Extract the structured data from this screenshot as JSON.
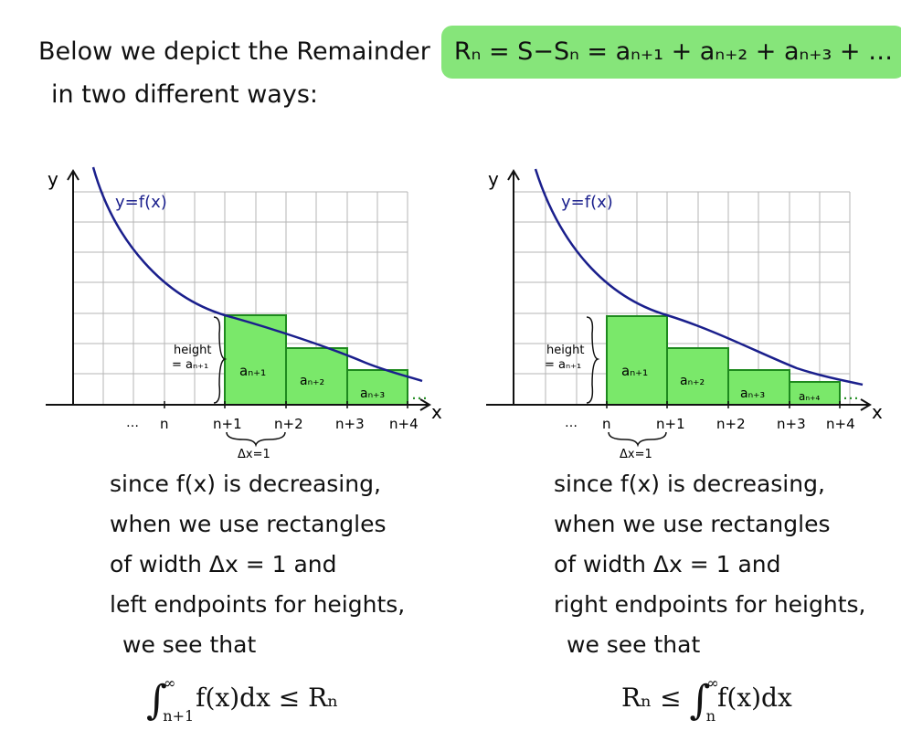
{
  "intro": {
    "prefix": "Below we depict the Remainder",
    "formula": "Rₙ = S−Sₙ = aₙ₊₁ + aₙ₊₂ + aₙ₊₃ + …",
    "line2": "in two different ways:"
  },
  "colors": {
    "curve": "#1a1f8c",
    "rect_fill": "#7ae86a",
    "rect_stroke": "#1e8a1e",
    "highlight": "#86e57a",
    "grid": "#b5b5b5"
  },
  "panels": [
    {
      "curve_label": "y=f(x)",
      "y_axis_label": "y",
      "x_axis_label": "x",
      "x_ticks": [
        "…",
        "n",
        "n+1",
        "n+2",
        "n+3",
        "n+4"
      ],
      "rect_labels": [
        "aₙ₊₁",
        "aₙ₊₂",
        "aₙ₊₃"
      ],
      "ellipsis": "…",
      "height_label_1": "height",
      "height_label_2": "= aₙ₊₁",
      "width_label": "Δx=1",
      "caption": [
        "since f(x) is decreasing,",
        "when we use rectangles",
        "of width Δx = 1  and",
        "left endpoints for heights,",
        "we see that"
      ],
      "formula": {
        "upper": "∞",
        "lower": "n+1",
        "body": "f(x)dx  ≤ Rₙ"
      }
    },
    {
      "curve_label": "y=f(x)",
      "y_axis_label": "y",
      "x_axis_label": "x",
      "x_ticks": [
        "…",
        "n",
        "n+1",
        "n+2",
        "n+3",
        "n+4"
      ],
      "rect_labels": [
        "aₙ₊₁",
        "aₙ₊₂",
        "aₙ₊₃",
        "aₙ₊₄"
      ],
      "ellipsis": "…",
      "height_label_1": "height",
      "height_label_2": "= aₙ₊₁",
      "width_label": "Δx=1",
      "caption": [
        "since f(x) is decreasing,",
        "when we use rectangles",
        "of width Δx = 1  and",
        "right endpoints for heights,",
        "we see that"
      ],
      "formula": {
        "prefix": "Rₙ ≤ ",
        "upper": "∞",
        "lower": "n",
        "body": "f(x)dx"
      }
    }
  ]
}
